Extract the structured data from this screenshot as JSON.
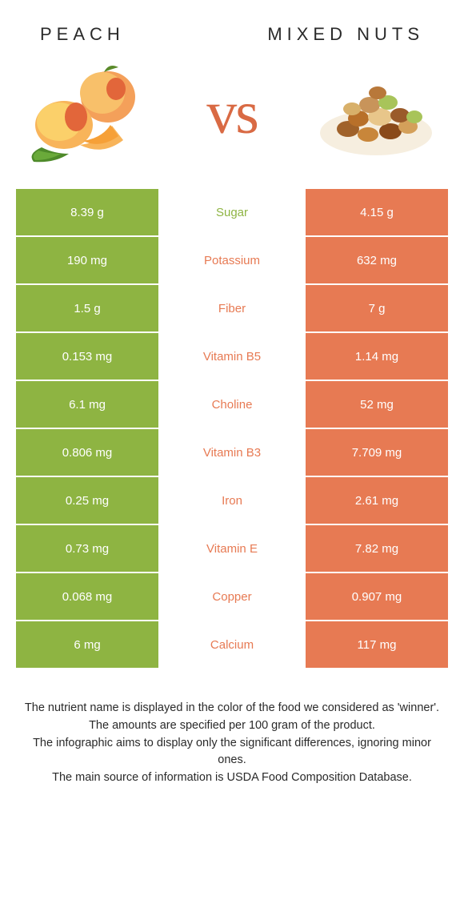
{
  "colors": {
    "peach_bar": "#8eb442",
    "nuts_bar": "#e77a53",
    "peach_label": "#8eb442",
    "nuts_label": "#e77a53",
    "text": "#2a2a2a",
    "vs": "#d96a44"
  },
  "header": {
    "left": "Peach",
    "right": "Mixed nuts",
    "vs": "vs"
  },
  "rows": [
    {
      "left": "8.39 g",
      "label": "Sugar",
      "right": "4.15 g",
      "winner": "peach"
    },
    {
      "left": "190 mg",
      "label": "Potassium",
      "right": "632 mg",
      "winner": "nuts"
    },
    {
      "left": "1.5 g",
      "label": "Fiber",
      "right": "7 g",
      "winner": "nuts"
    },
    {
      "left": "0.153 mg",
      "label": "Vitamin B5",
      "right": "1.14 mg",
      "winner": "nuts"
    },
    {
      "left": "6.1 mg",
      "label": "Choline",
      "right": "52 mg",
      "winner": "nuts"
    },
    {
      "left": "0.806 mg",
      "label": "Vitamin B3",
      "right": "7.709 mg",
      "winner": "nuts"
    },
    {
      "left": "0.25 mg",
      "label": "Iron",
      "right": "2.61 mg",
      "winner": "nuts"
    },
    {
      "left": "0.73 mg",
      "label": "Vitamin E",
      "right": "7.82 mg",
      "winner": "nuts"
    },
    {
      "left": "0.068 mg",
      "label": "Copper",
      "right": "0.907 mg",
      "winner": "nuts"
    },
    {
      "left": "6 mg",
      "label": "Calcium",
      "right": "117 mg",
      "winner": "nuts"
    }
  ],
  "footer": {
    "line1": "The nutrient name is displayed in the color of the food we considered as 'winner'.",
    "line2": "The amounts are specified per 100 gram of the product.",
    "line3": "The infographic aims to display only the significant differences, ignoring minor ones.",
    "line4": "The main source of information is USDA Food Composition Database."
  }
}
